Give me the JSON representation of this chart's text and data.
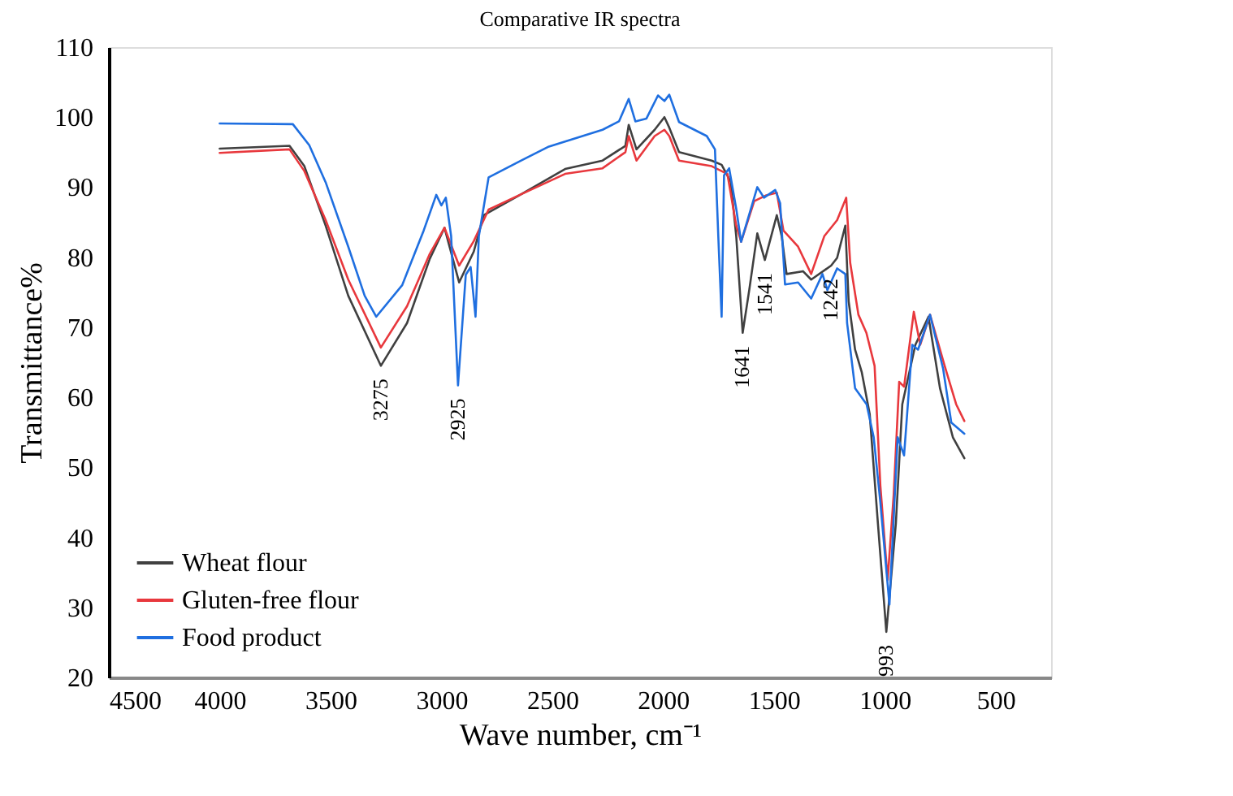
{
  "chart_data": {
    "type": "line",
    "title": "Comparative IR spectra",
    "xlabel": "Wave number, cm⁻¹",
    "ylabel": "Transmittance%",
    "xlim": [
      4500,
      250
    ],
    "xticks": [
      4500,
      4000,
      3500,
      3000,
      2500,
      2000,
      1500,
      1000,
      500
    ],
    "ylim": [
      20,
      110
    ],
    "yticks": [
      20,
      30,
      40,
      50,
      60,
      70,
      80,
      90,
      100,
      110
    ],
    "grid": false,
    "legend": "bottom left",
    "marker": "none",
    "line_style": "solid",
    "series": [
      {
        "name": "Wheat flour",
        "color": "#404040",
        "x": [
          4000,
          3685,
          3618,
          3522,
          3420,
          3273,
          3155,
          3052,
          2986,
          2920,
          2854,
          2809,
          2640,
          2442,
          2273,
          2170,
          2155,
          2120,
          2038,
          1994,
          1972,
          1928,
          1781,
          1736,
          1695,
          1670,
          1641,
          1611,
          1575,
          1541,
          1487,
          1465,
          1443,
          1369,
          1332,
          1242,
          1215,
          1178,
          1163,
          1134,
          1104,
          1068,
          1031,
          993,
          950,
          921,
          862,
          803,
          751,
          693,
          641
        ],
        "values": [
          95.5,
          95.9,
          93,
          84.5,
          74.5,
          64.5,
          70.6,
          79.8,
          84.2,
          76.4,
          80.8,
          86,
          89,
          92.6,
          93.8,
          95.9,
          98.9,
          95.4,
          98.2,
          100,
          98.5,
          95,
          93.8,
          93.2,
          90.8,
          83,
          69.2,
          75.4,
          83.4,
          79.6,
          86,
          83,
          77.6,
          78,
          76.8,
          78.8,
          79.9,
          84.5,
          73.7,
          66.8,
          63.6,
          57.6,
          42,
          26.5,
          42,
          59,
          67.5,
          71.5,
          61.3,
          54.3,
          51.3
        ]
      },
      {
        "name": "Gluten-free flour",
        "color": "#e8383d",
        "x": [
          4000,
          3685,
          3618,
          3522,
          3420,
          3273,
          3155,
          3052,
          2986,
          2920,
          2854,
          2787,
          2640,
          2442,
          2273,
          2170,
          2155,
          2120,
          2038,
          1994,
          1972,
          1928,
          1781,
          1710,
          1670,
          1648,
          1589,
          1538,
          1487,
          1457,
          1391,
          1332,
          1273,
          1215,
          1174,
          1156,
          1119,
          1083,
          1046,
          1020,
          987,
          960,
          935,
          913,
          869,
          840,
          796,
          730,
          678,
          641
        ],
        "values": [
          94.9,
          95.4,
          92.3,
          85.3,
          76.8,
          67.1,
          73,
          80.5,
          84.2,
          78.8,
          82.3,
          86.8,
          89,
          91.9,
          92.7,
          95,
          97.3,
          93.8,
          97.3,
          98.2,
          97.3,
          93.8,
          93,
          91.9,
          84.5,
          82.2,
          88,
          88.8,
          89.2,
          83.8,
          81.5,
          77.6,
          83,
          85.3,
          88.5,
          79.2,
          71.8,
          69.2,
          64.5,
          47.4,
          33.9,
          46,
          62.2,
          61.5,
          72.2,
          67.5,
          71.8,
          64.5,
          59,
          56.6
        ]
      },
      {
        "name": "Food product",
        "color": "#1f6fe0",
        "x": [
          4000,
          3670,
          3596,
          3522,
          3420,
          3346,
          3294,
          3177,
          3080,
          3023,
          3000,
          2980,
          2956,
          2925,
          2890,
          2868,
          2846,
          2831,
          2787,
          2640,
          2515,
          2273,
          2199,
          2155,
          2125,
          2075,
          2023,
          1994,
          1972,
          1928,
          1803,
          1766,
          1751,
          1736,
          1725,
          1702,
          1670,
          1648,
          1575,
          1545,
          1494,
          1472,
          1450,
          1391,
          1332,
          1281,
          1259,
          1215,
          1178,
          1170,
          1134,
          1082,
          1050,
          1020,
          979,
          942,
          913,
          876,
          850,
          796,
          737,
          700,
          641
        ],
        "values": [
          99.1,
          99,
          96,
          90.7,
          81.5,
          74.5,
          71.5,
          76,
          83.8,
          88.9,
          87.4,
          88.5,
          83,
          61.7,
          77.5,
          78.6,
          71.5,
          83,
          91.4,
          93.8,
          95.8,
          98.2,
          99.4,
          102.6,
          99.4,
          99.8,
          103.1,
          102.3,
          103.2,
          99.3,
          97.3,
          95.4,
          83,
          71.5,
          91.7,
          92.7,
          86.9,
          82.2,
          90,
          88.5,
          89.6,
          87.7,
          76.1,
          76.4,
          74.1,
          77.6,
          75.3,
          78.4,
          77.6,
          70.6,
          61.3,
          59,
          54.3,
          45,
          30.4,
          54.3,
          51.7,
          67.5,
          66.8,
          71.8,
          64.1,
          56.4,
          54.8
        ]
      }
    ],
    "annotations": [
      {
        "text": "3275",
        "x": 3273,
        "y": 64.5
      },
      {
        "text": "2925",
        "x": 2925,
        "y": 61.7
      },
      {
        "text": "1641",
        "x": 1641,
        "y": 69.2
      },
      {
        "text": "1541",
        "x": 1541,
        "y": 79.6
      },
      {
        "text": "1242",
        "x": 1242,
        "y": 78.8
      },
      {
        "text": "993",
        "x": 993,
        "y": 26.5
      }
    ]
  }
}
